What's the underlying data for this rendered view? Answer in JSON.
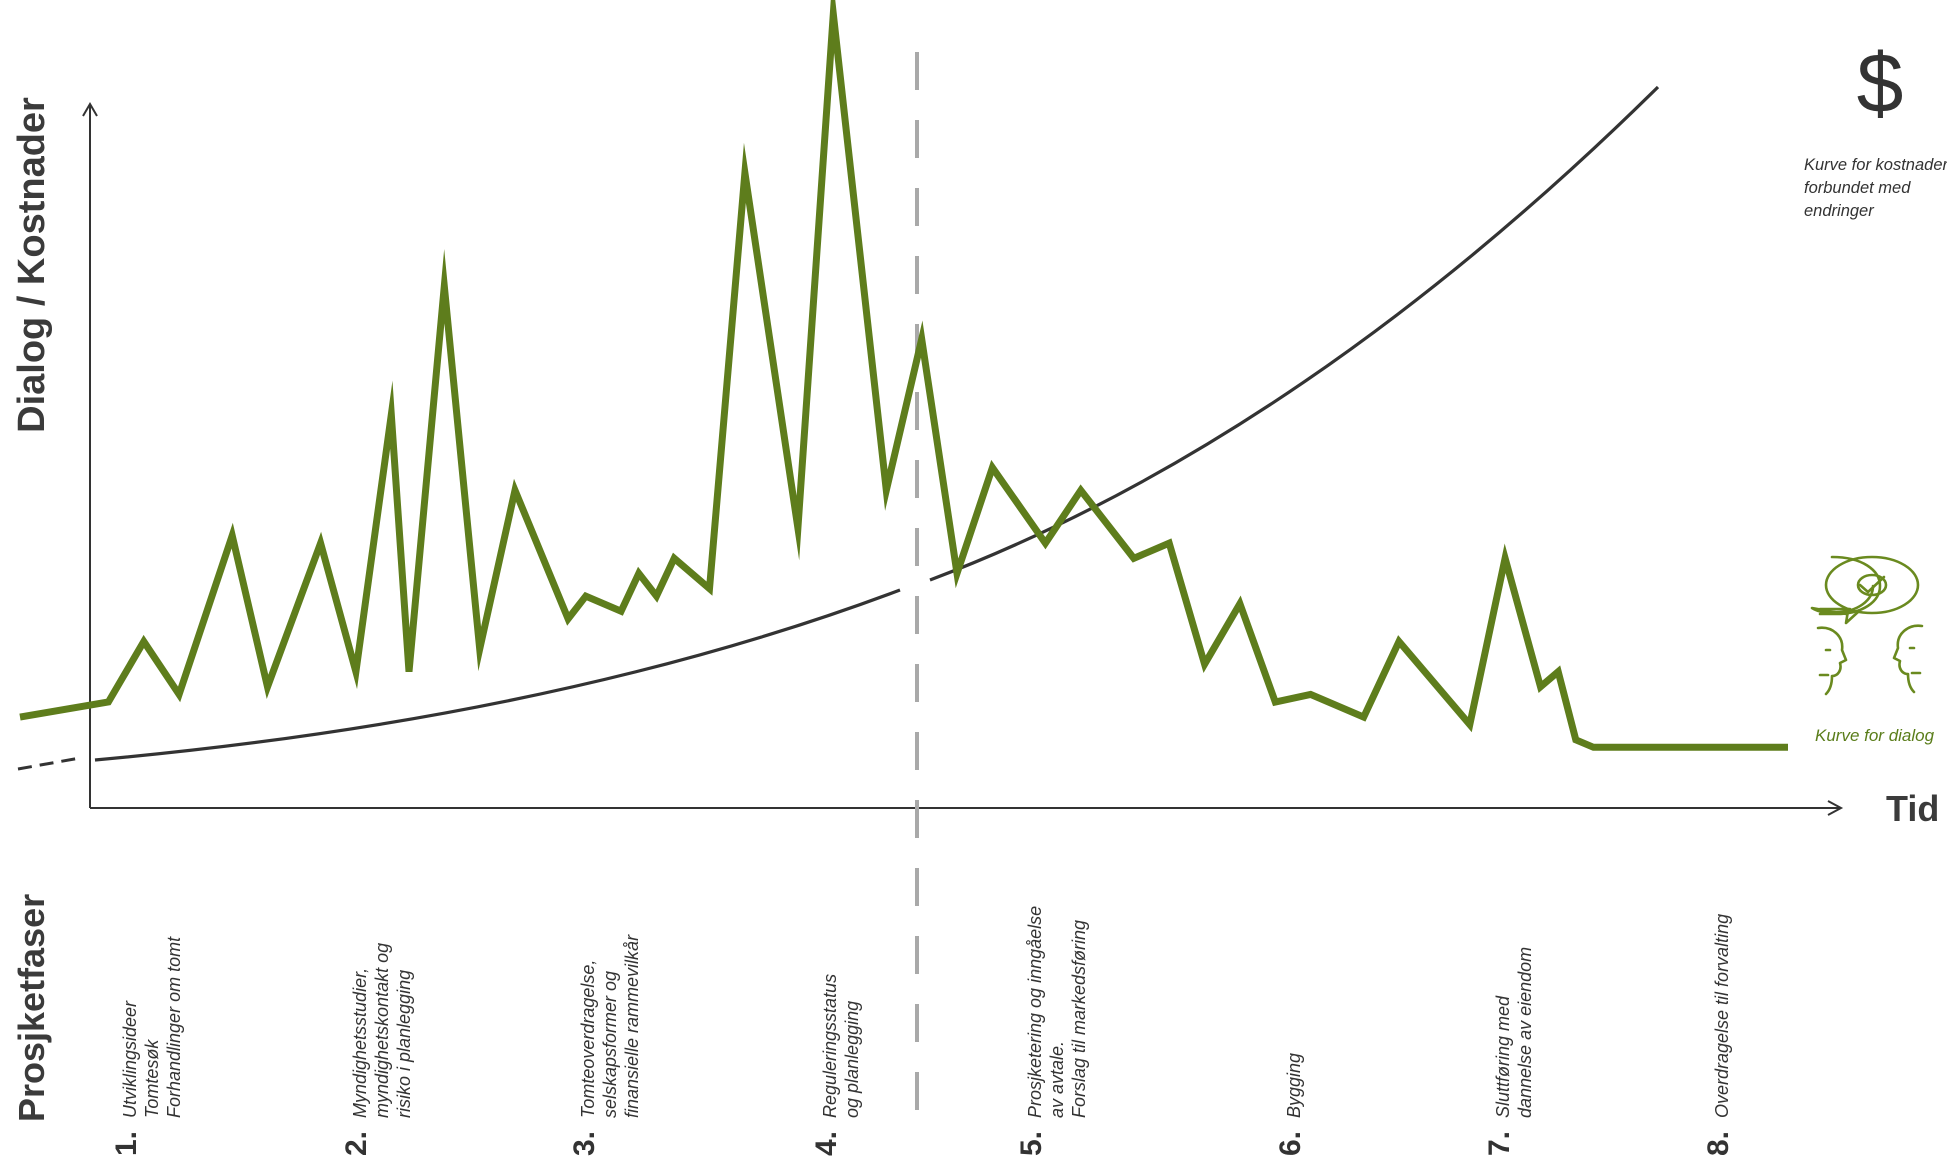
{
  "axes": {
    "ylabel": "Dialog / Kostnader",
    "xlabel": "Tid"
  },
  "phases_title": "Prosjketfaser",
  "phases": [
    {
      "number": "1.",
      "lines": [
        "Utviklingsideer",
        "Tomtesøk",
        "Forhandlinger om tomt"
      ]
    },
    {
      "number": "2.",
      "lines": [
        "Myndighetsstudier,",
        "myndighetskontakt og",
        "risiko i planlegging"
      ]
    },
    {
      "number": "3.",
      "lines": [
        "Tomteoverdragelse,",
        "selskapsformer og",
        "finansielle rammevilkår"
      ]
    },
    {
      "number": "4.",
      "lines": [
        "Reguleringsstatus",
        "og planlegging"
      ]
    },
    {
      "number": "5.",
      "lines": [
        "Prosjketering og inngåelse",
        "av avtale.",
        "Forslag til markedsføring"
      ]
    },
    {
      "number": "6.",
      "lines": [
        "Bygging"
      ]
    },
    {
      "number": "7.",
      "lines": [
        "Sluttføring med",
        "dannelse av eiendom"
      ]
    },
    {
      "number": "8.",
      "lines": [
        "Overdragelse til forvalting"
      ]
    }
  ],
  "legend": {
    "cost_symbol": "$",
    "cost_lines": [
      "Kurve for kostnader",
      "forbundet med",
      "endringer"
    ],
    "dialog_label": "Kurve for dialog",
    "dialog_icon": "two-faces-dialog-icon"
  },
  "colors": {
    "dialog": "#5e7d1c",
    "cost": "#333333",
    "axis": "#333333",
    "divider": "#a9a9a9",
    "dialog_legend_text": "#5a7d1a"
  },
  "chart_data": {
    "type": "line",
    "series": [
      {
        "name": "Kurve for dialog",
        "x": [
          0,
          5,
          7,
          9,
          12,
          14,
          17,
          19,
          21,
          22,
          24,
          26,
          28,
          31,
          32,
          34,
          35,
          36,
          37,
          39,
          41,
          44,
          46,
          49,
          51,
          53,
          55,
          58,
          60,
          63,
          65,
          67,
          69,
          71,
          73,
          76,
          78,
          82,
          84,
          86,
          87,
          88,
          89,
          92,
          100
        ],
        "y": [
          7,
          9,
          17,
          10,
          31,
          11,
          30,
          13,
          47,
          13,
          64,
          16,
          37,
          20,
          23,
          21,
          26,
          23,
          28,
          24,
          79,
          32,
          100,
          37,
          57,
          26,
          40,
          30,
          37,
          28,
          30,
          14,
          22,
          9,
          10,
          7,
          17,
          6,
          28,
          11,
          13,
          4,
          3,
          3,
          3
        ]
      },
      {
        "name": "Kurve for kostnader forbundet med endringer",
        "x": [
          0,
          10,
          20,
          30,
          40,
          48,
          50,
          60,
          70,
          80,
          90,
          100
        ],
        "y": [
          7,
          9,
          11,
          14,
          19,
          25,
          32,
          42,
          55,
          70,
          86,
          100
        ]
      }
    ]
  }
}
